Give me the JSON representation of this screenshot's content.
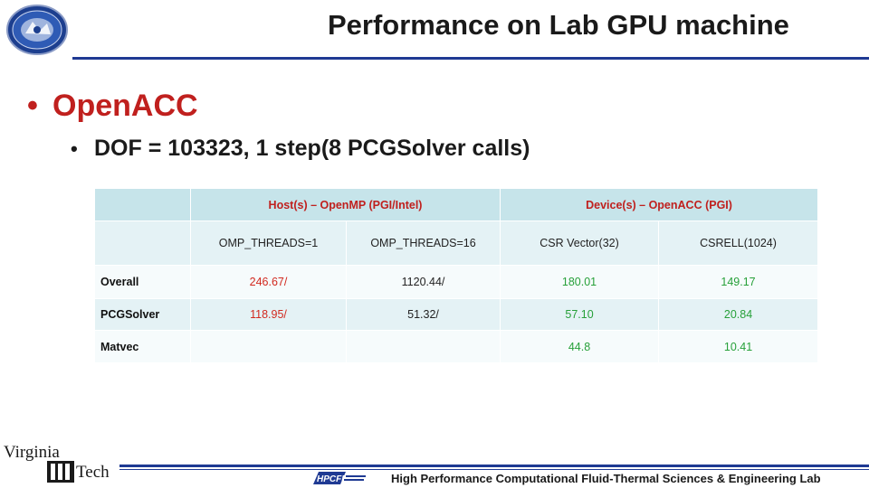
{
  "title": "Performance on Lab GPU machine",
  "bullets": {
    "level1": "OpenACC",
    "level2": "DOF = 103323, 1 step(8 PCGSolver calls)"
  },
  "table": {
    "group_headers": [
      "Host(s) – OpenMP (PGI/Intel)",
      "Device(s) – OpenACC (PGI)"
    ],
    "sub_headers": [
      "OMP_THREADS=1",
      "OMP_THREADS=16",
      "CSR Vector(32)",
      "CSRELL(1024)"
    ],
    "rows": [
      {
        "label": "Overall",
        "cells": [
          "246.67/",
          "1120.44/",
          "180.01",
          "149.17"
        ]
      },
      {
        "label": "PCGSolver",
        "cells": [
          "118.95/",
          "51.32/",
          "57.10",
          "20.84"
        ]
      },
      {
        "label": "Matvec",
        "cells": [
          "",
          "",
          "44.8",
          "10.41"
        ]
      }
    ]
  },
  "logos": {
    "seal_text": "",
    "vt_line1": "Virginia",
    "vt_line2": "Tech",
    "hpcfd": "HPCFD"
  },
  "footer": "High Performance Computational Fluid-Thermal Sciences & Engineering Lab",
  "colors": {
    "title_rule": "#1f3a93",
    "accent_red": "#c0201e",
    "value_red": "#d2291f",
    "value_green": "#27a03a",
    "table_header_bg": "#c6e4ea",
    "table_band_bg": "#e4f2f5"
  }
}
